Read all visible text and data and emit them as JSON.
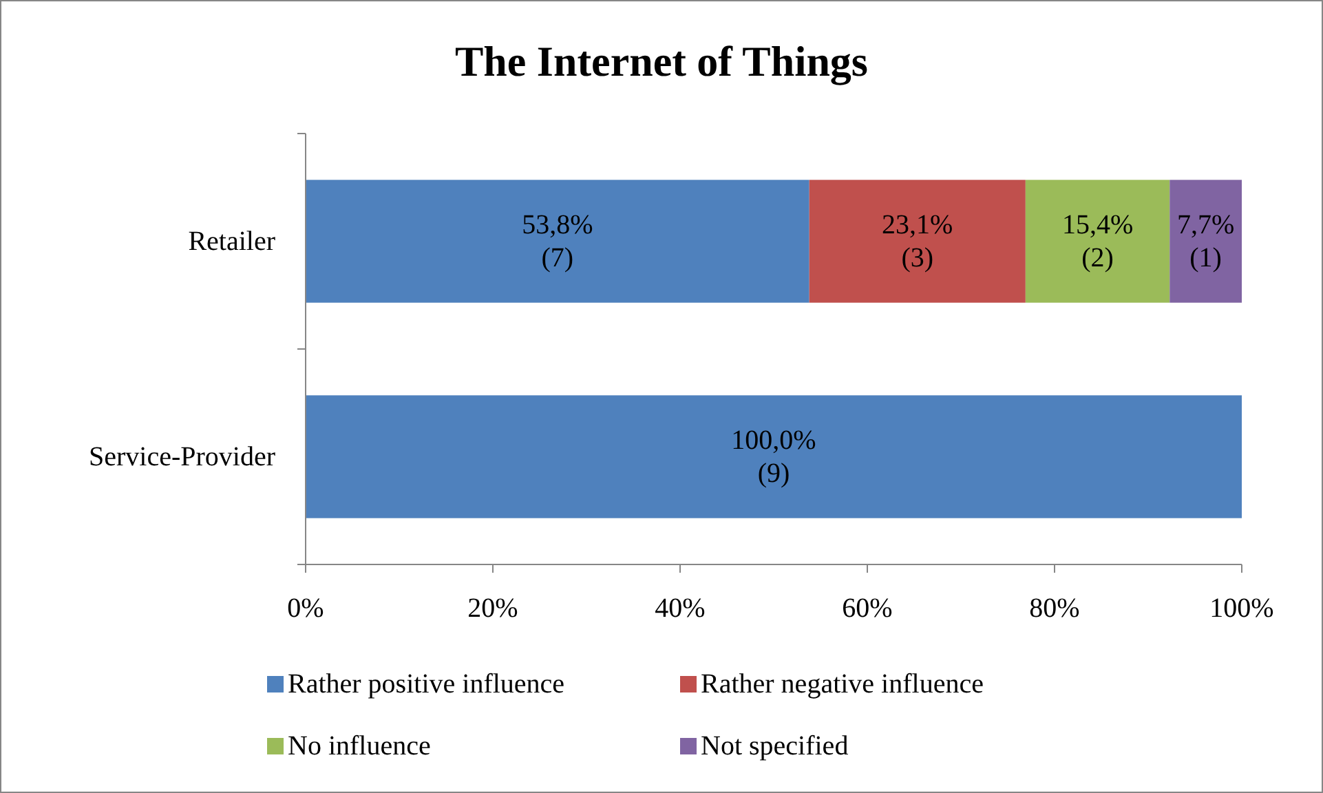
{
  "chart_data": {
    "type": "bar",
    "title": "The Internet of Things",
    "orientation": "horizontal",
    "stacked": true,
    "categories": [
      "Retailer",
      "Service-Provider"
    ],
    "series": [
      {
        "name": "Rather positive influence",
        "color": "#4f81bd",
        "values": [
          53.8,
          100
        ],
        "value_labels": [
          "53,8%\n(7)",
          "100,0%\n(9)"
        ]
      },
      {
        "name": "Rather negative influence",
        "color": "#c0504d",
        "values": [
          23.1,
          0
        ],
        "value_labels": [
          "23,1%\n(3)",
          null
        ]
      },
      {
        "name": "No influence",
        "color": "#9bbb59",
        "values": [
          15.4,
          0
        ],
        "value_labels": [
          "15,4%\n(2)",
          null
        ]
      },
      {
        "name": "Not specified",
        "color": "#8064a2",
        "values": [
          7.7,
          0
        ],
        "value_labels": [
          "7,7%\n(1)",
          null
        ]
      }
    ],
    "xlim": [
      0,
      100
    ],
    "xticks": [
      {
        "value": 0,
        "label": "0%"
      },
      {
        "value": 20,
        "label": "20%"
      },
      {
        "value": 40,
        "label": "40%"
      },
      {
        "value": 60,
        "label": "60%"
      },
      {
        "value": 80,
        "label": "80%"
      },
      {
        "value": 100,
        "label": "100%"
      }
    ],
    "grid": false,
    "legend": "bottom"
  }
}
